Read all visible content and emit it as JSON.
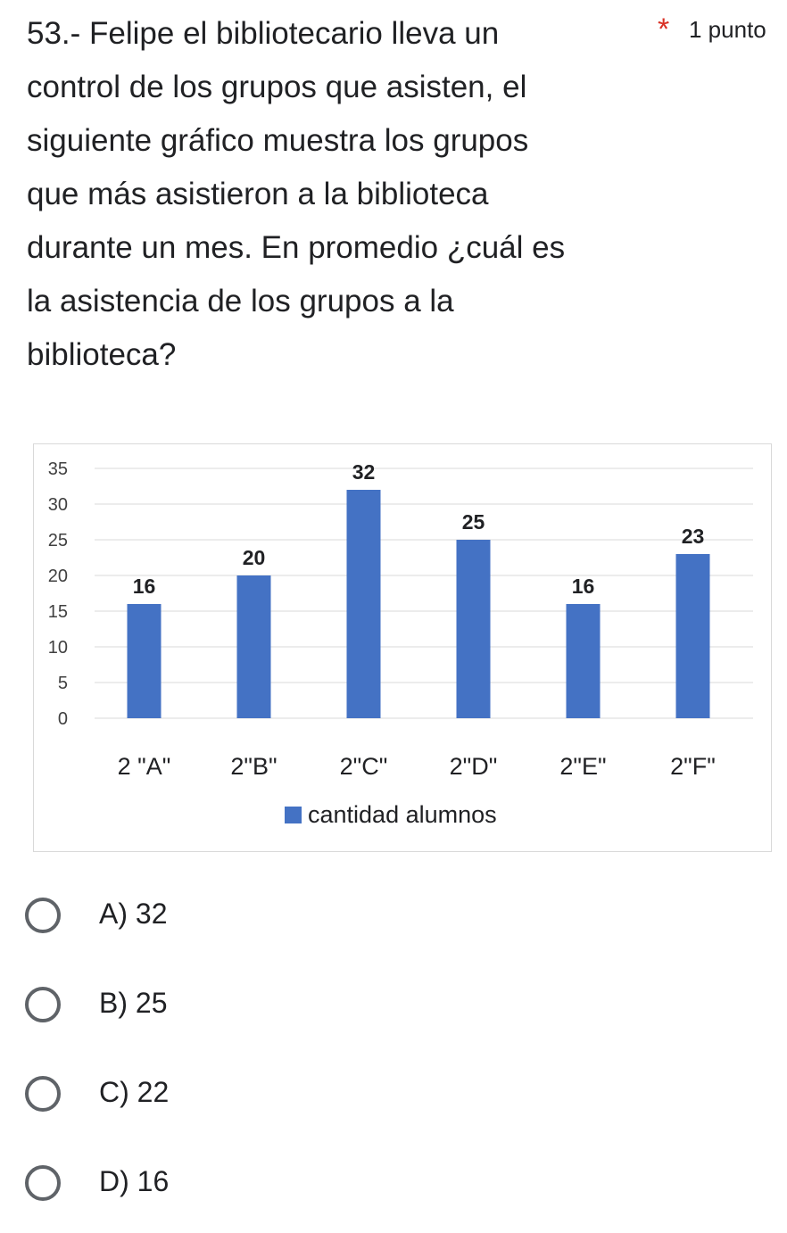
{
  "question": {
    "number_text": "53.- Felipe el bibliotecario lleva un control de los grupos que asisten, el siguiente gráfico muestra los grupos que más asistieron a la biblioteca durante un mes.  En promedio ¿cuál es la asistencia de los grupos a la biblioteca?",
    "lines": [
      "53.- Felipe el bibliotecario lleva un",
      "control de los grupos que asisten, el",
      "siguiente gráfico muestra los grupos",
      "que más asistieron a la biblioteca",
      "durante un mes.  En promedio ¿cuál es",
      "la asistencia de los grupos a la",
      "biblioteca?"
    ],
    "required_mark": "*",
    "points": "1 punto"
  },
  "chart_data": {
    "type": "bar",
    "categories": [
      "2 \"A\"",
      "2\"B\"",
      "2\"C\"",
      "2\"D\"",
      "2\"E\"",
      "2\"F\""
    ],
    "series": [
      {
        "name": "cantidad alumnos",
        "values": [
          16,
          20,
          32,
          25,
          16,
          23
        ]
      }
    ],
    "ylim": [
      0,
      35
    ],
    "yticks": [
      0,
      5,
      10,
      15,
      20,
      25,
      30,
      35
    ],
    "grid": true,
    "legend": "bottom",
    "bar_color": "#4472c4",
    "data_labels": true
  },
  "options": [
    {
      "letter": "A",
      "label": "A) 32"
    },
    {
      "letter": "B",
      "label": "B) 25"
    },
    {
      "letter": "C",
      "label": "C) 22"
    },
    {
      "letter": "D",
      "label": "D) 16"
    }
  ],
  "colors": {
    "required": "#d93025",
    "radio_border": "#5f6368"
  }
}
